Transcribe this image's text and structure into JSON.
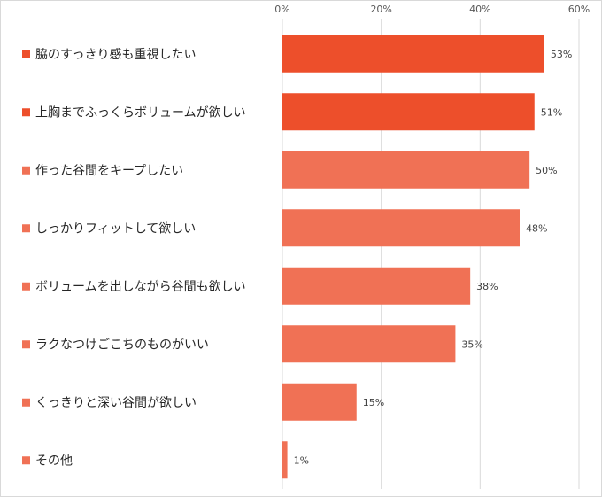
{
  "chart_data": {
    "type": "bar",
    "orientation": "horizontal",
    "title": "",
    "xlabel": "",
    "ylabel": "",
    "xlim": [
      0,
      60
    ],
    "x_ticks": [
      "0%",
      "20%",
      "40%",
      "60%"
    ],
    "grid": true,
    "legend": "none",
    "categories": [
      "脇のすっきり感も重視したい",
      "上胸までふっくらボリュームが欲しい",
      "作った谷間をキープしたい",
      "しっかりフィットして欲しい",
      "ボリュームを出しながら谷間も欲しい",
      "ラクなつけごこちのものがいい",
      "くっきりと深い谷間が欲しい",
      "その他"
    ],
    "values": [
      53,
      51,
      50,
      48,
      38,
      35,
      15,
      1
    ],
    "data_labels": [
      "53%",
      "51%",
      "50%",
      "48%",
      "38%",
      "35%",
      "15%",
      "1%"
    ],
    "highlight_count": 2,
    "colors": {
      "highlight": "#ed4f2b",
      "normal": "#f07155",
      "grid": "#d9d9d9"
    }
  }
}
